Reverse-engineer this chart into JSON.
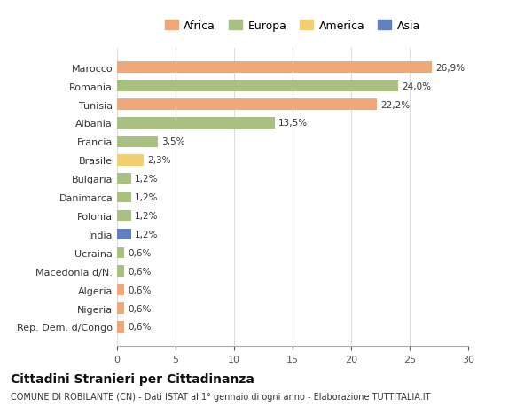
{
  "categories": [
    "Rep. Dem. d/Congo",
    "Nigeria",
    "Algeria",
    "Macedonia d/N.",
    "Ucraina",
    "India",
    "Polonia",
    "Danimarca",
    "Bulgaria",
    "Brasile",
    "Francia",
    "Albania",
    "Tunisia",
    "Romania",
    "Marocco"
  ],
  "values": [
    0.6,
    0.6,
    0.6,
    0.6,
    0.6,
    1.2,
    1.2,
    1.2,
    1.2,
    2.3,
    3.5,
    13.5,
    22.2,
    24.0,
    26.9
  ],
  "labels": [
    "0,6%",
    "0,6%",
    "0,6%",
    "0,6%",
    "0,6%",
    "1,2%",
    "1,2%",
    "1,2%",
    "1,2%",
    "2,3%",
    "3,5%",
    "13,5%",
    "22,2%",
    "24,0%",
    "26,9%"
  ],
  "continents": [
    "Africa",
    "Africa",
    "Africa",
    "Europa",
    "Europa",
    "Asia",
    "Europa",
    "Europa",
    "Europa",
    "America",
    "Europa",
    "Europa",
    "Africa",
    "Europa",
    "Africa"
  ],
  "colors": {
    "Africa": "#F0A878",
    "Europa": "#A8C080",
    "America": "#F0D070",
    "Asia": "#6080C0"
  },
  "legend_order": [
    "Africa",
    "Europa",
    "America",
    "Asia"
  ],
  "xlim": [
    0,
    30
  ],
  "xticks": [
    0,
    5,
    10,
    15,
    20,
    25,
    30
  ],
  "title": "Cittadini Stranieri per Cittadinanza",
  "subtitle": "COMUNE DI ROBILANTE (CN) - Dati ISTAT al 1° gennaio di ogni anno - Elaborazione TUTTITALIA.IT",
  "background_color": "#ffffff",
  "grid_color": "#dddddd",
  "bar_height": 0.6
}
